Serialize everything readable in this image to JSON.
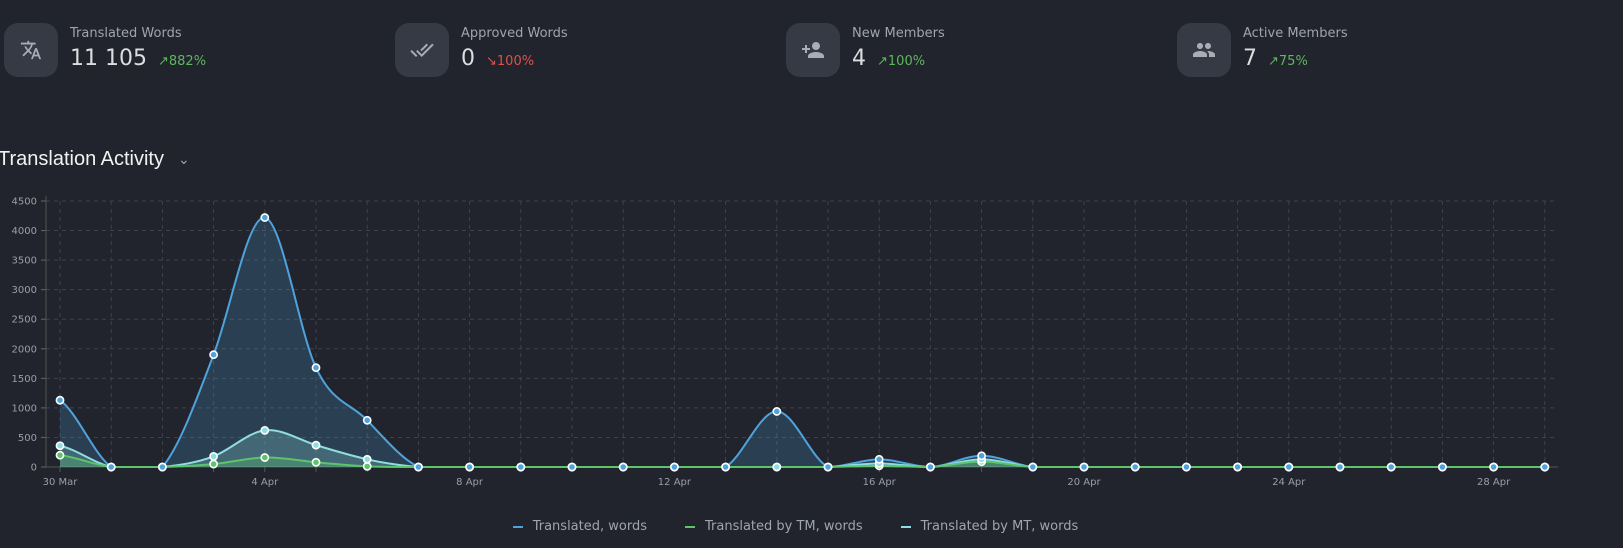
{
  "stats": [
    {
      "label": "Translated Words",
      "value": "11 105",
      "change": "882%",
      "direction": "up",
      "icon": "translate-icon"
    },
    {
      "label": "Approved Words",
      "value": "0",
      "change": "100%",
      "direction": "down",
      "icon": "double-check-icon"
    },
    {
      "label": "New Members",
      "value": "4",
      "change": "100%",
      "direction": "up",
      "icon": "person-add-icon"
    },
    {
      "label": "Active Members",
      "value": "7",
      "change": "75%",
      "direction": "up",
      "icon": "people-icon"
    }
  ],
  "section": {
    "title": "Translation Activity"
  },
  "colors": {
    "up": "#5cb85c",
    "down": "#e0504a",
    "translated": "#4ea3dc",
    "tm": "#5cc46a",
    "mt": "#8fdde0"
  },
  "chart_data": {
    "type": "area",
    "ylim": [
      0,
      4500
    ],
    "yticks": [
      0,
      500,
      1000,
      1500,
      2000,
      2500,
      3000,
      3500,
      4000,
      4500
    ],
    "xtick_labels": [
      {
        "index": 0,
        "label": "30 Mar"
      },
      {
        "index": 4,
        "label": "4 Apr"
      },
      {
        "index": 8,
        "label": "8 Apr"
      },
      {
        "index": 12,
        "label": "12 Apr"
      },
      {
        "index": 16,
        "label": "16 Apr"
      },
      {
        "index": 20,
        "label": "20 Apr"
      },
      {
        "index": 24,
        "label": "24 Apr"
      },
      {
        "index": 28,
        "label": "28 Apr"
      }
    ],
    "grid": true,
    "legend": "bottom",
    "series": [
      {
        "name": "Translated, words",
        "color": "#4ea3dc",
        "values": [
          1130,
          0,
          0,
          1900,
          4220,
          1680,
          790,
          0,
          0,
          0,
          0,
          0,
          0,
          0,
          940,
          0,
          130,
          0,
          190,
          0,
          0,
          0,
          0,
          0,
          0,
          0,
          0,
          0,
          0,
          0
        ]
      },
      {
        "name": "Translated by TM, words",
        "color": "#5cc46a",
        "values": [
          200,
          0,
          0,
          50,
          160,
          80,
          10,
          0,
          0,
          0,
          0,
          0,
          0,
          0,
          0,
          0,
          20,
          0,
          90,
          0,
          0,
          0,
          0,
          0,
          0,
          0,
          0,
          0,
          0,
          0
        ]
      },
      {
        "name": "Translated by MT, words",
        "color": "#8fdde0",
        "values": [
          360,
          0,
          0,
          180,
          620,
          370,
          130,
          0,
          0,
          0,
          0,
          0,
          0,
          0,
          0,
          0,
          60,
          0,
          130,
          0,
          0,
          0,
          0,
          0,
          0,
          0,
          0,
          0,
          0,
          0
        ]
      }
    ]
  }
}
